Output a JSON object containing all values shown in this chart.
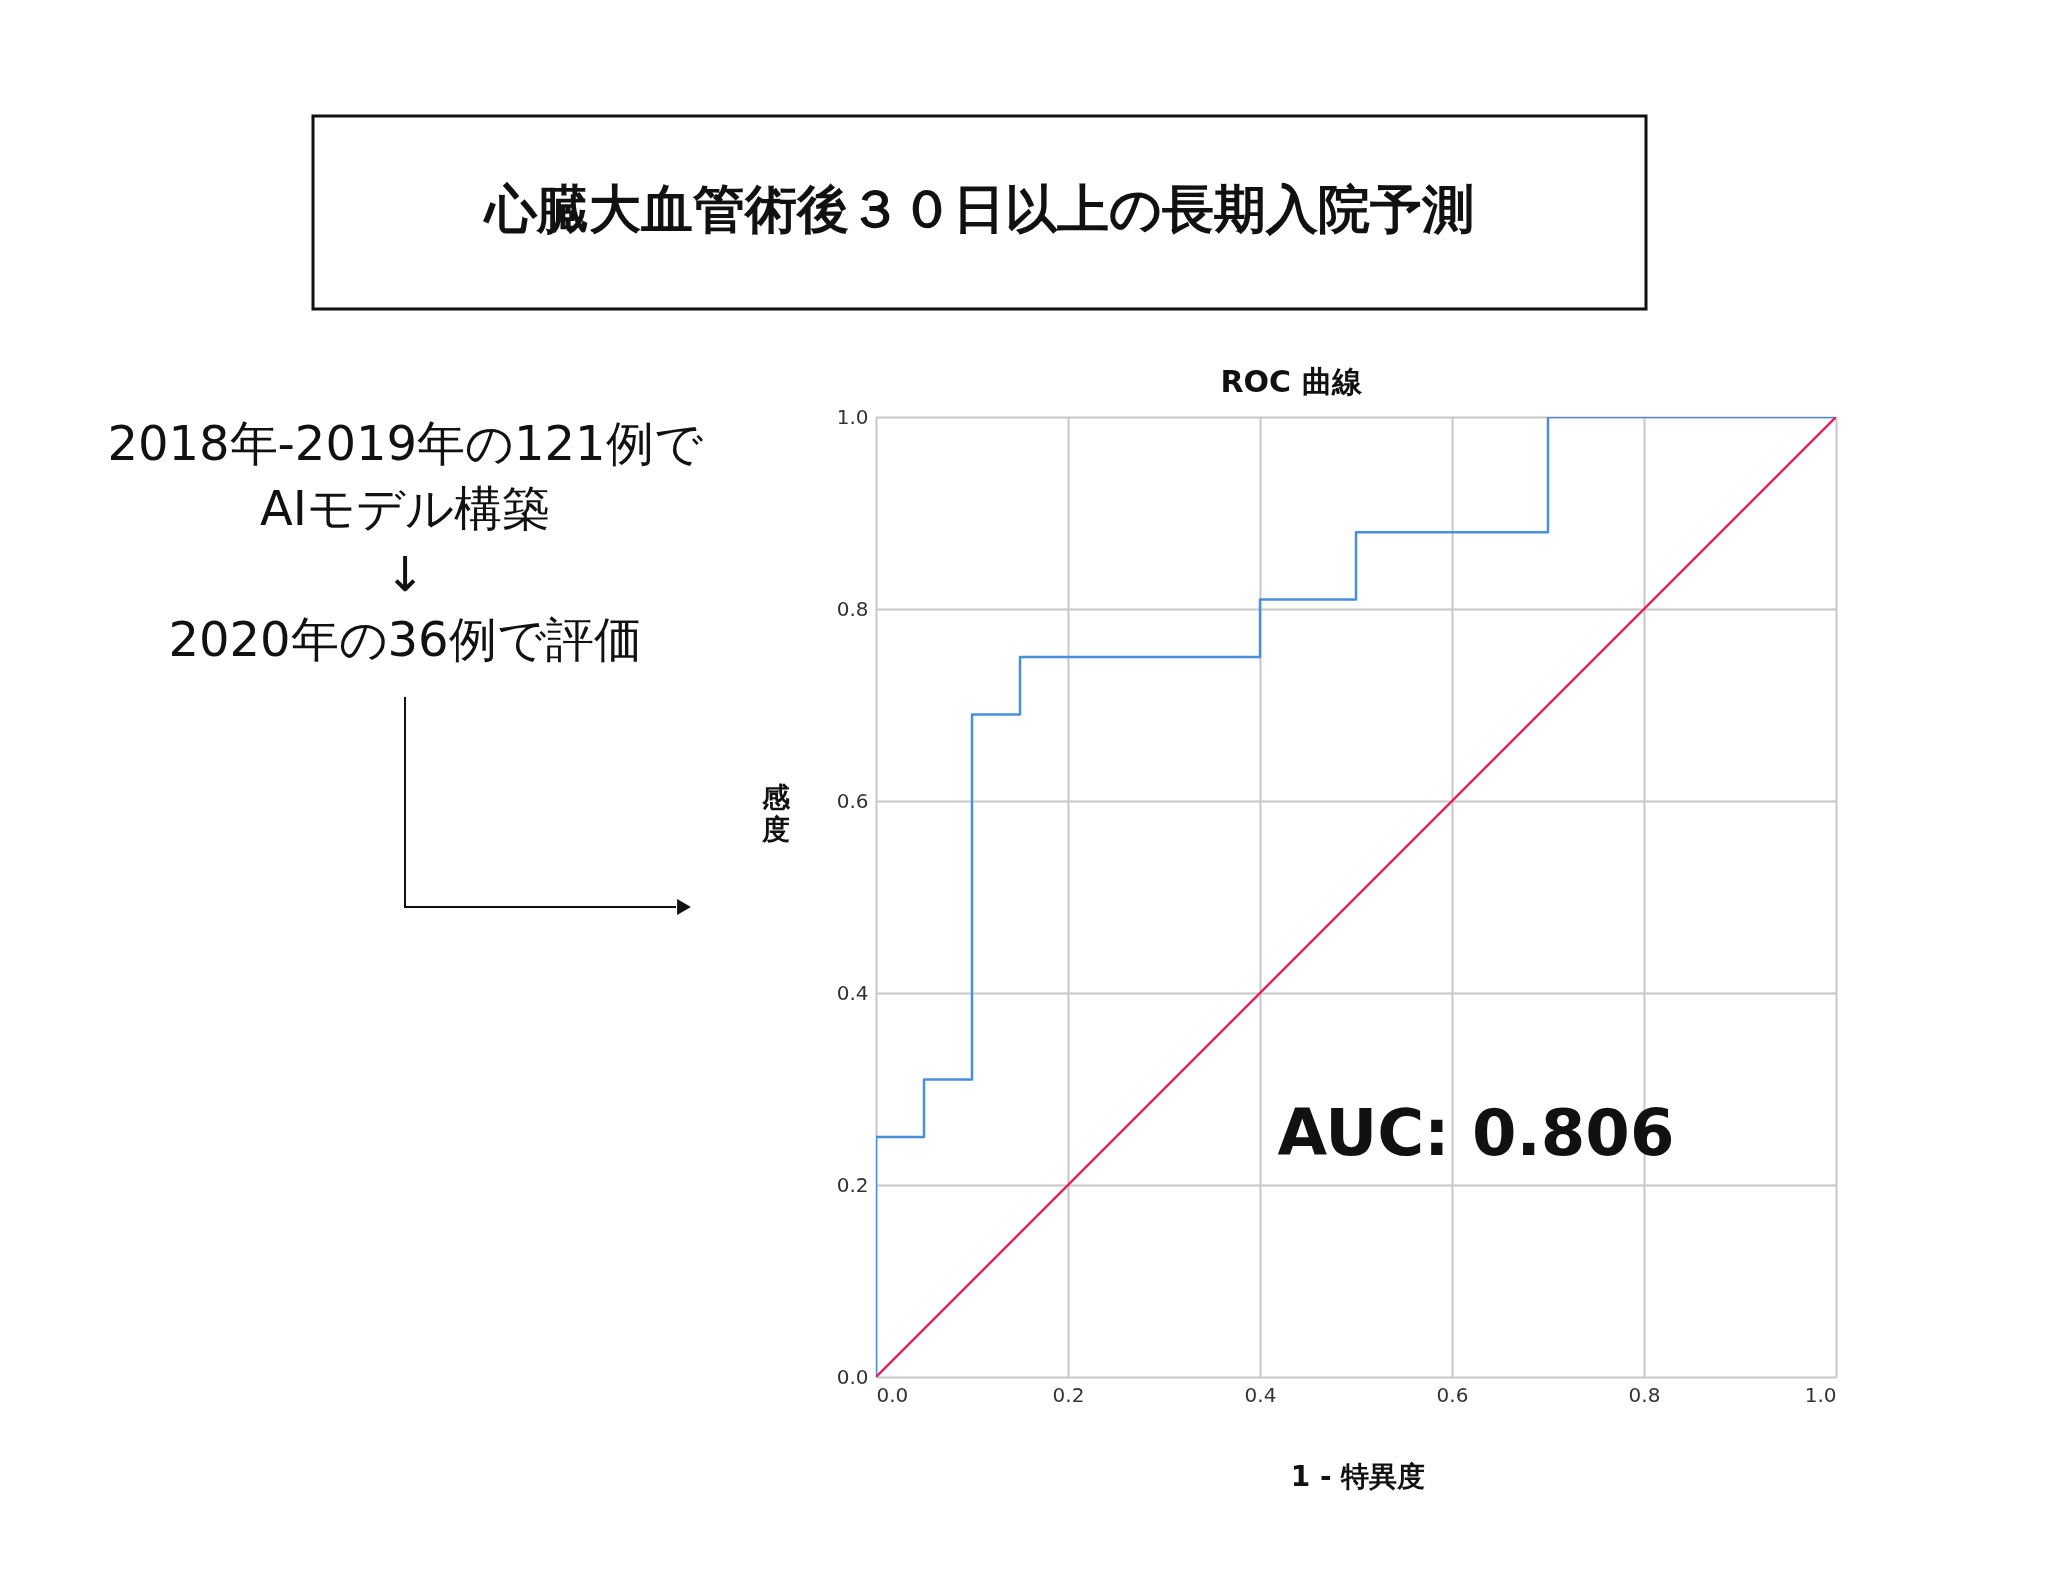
{
  "chart_data": {
    "type": "step",
    "title": "ROC 曲線",
    "xlabel": "1 - 特異度",
    "ylabel": "感度",
    "annotations": [
      "心臓大血管術後３０日以上の長期入院予測",
      "2018年-2019年の121例で",
      "AIモデル構築",
      "↓",
      "2020年の36例で評価",
      "AUC: 0.806"
    ],
    "series": [
      {
        "color": "#4a8fdc",
        "x": [
          0,
          0,
          0.05,
          0.1,
          0.15,
          0.4,
          0.5,
          0.7,
          1.0
        ],
        "values": [
          0,
          0.25,
          0.31,
          0.69,
          0.75,
          0.81,
          0.88,
          1.0,
          1.0
        ]
      },
      {
        "type": "line",
        "color": "#e0245e",
        "x": [
          0,
          1.0
        ],
        "values": [
          0,
          1.0
        ]
      }
    ],
    "xlim": [
      0,
      1.0
    ],
    "ylim": [
      0,
      1.0
    ],
    "xticks": [
      {
        "value": 0,
        "label": "0.0"
      },
      0.2,
      0.4,
      0.6,
      0.8,
      {
        "value": 1.0,
        "label": "1.0"
      }
    ],
    "yticks": [
      {
        "value": 0,
        "label": "0.0"
      },
      0.2,
      0.4,
      0.6,
      0.8,
      {
        "value": 1.0,
        "label": "1.0"
      }
    ],
    "grid": true,
    "marker": "none",
    "line_style": "solid"
  }
}
